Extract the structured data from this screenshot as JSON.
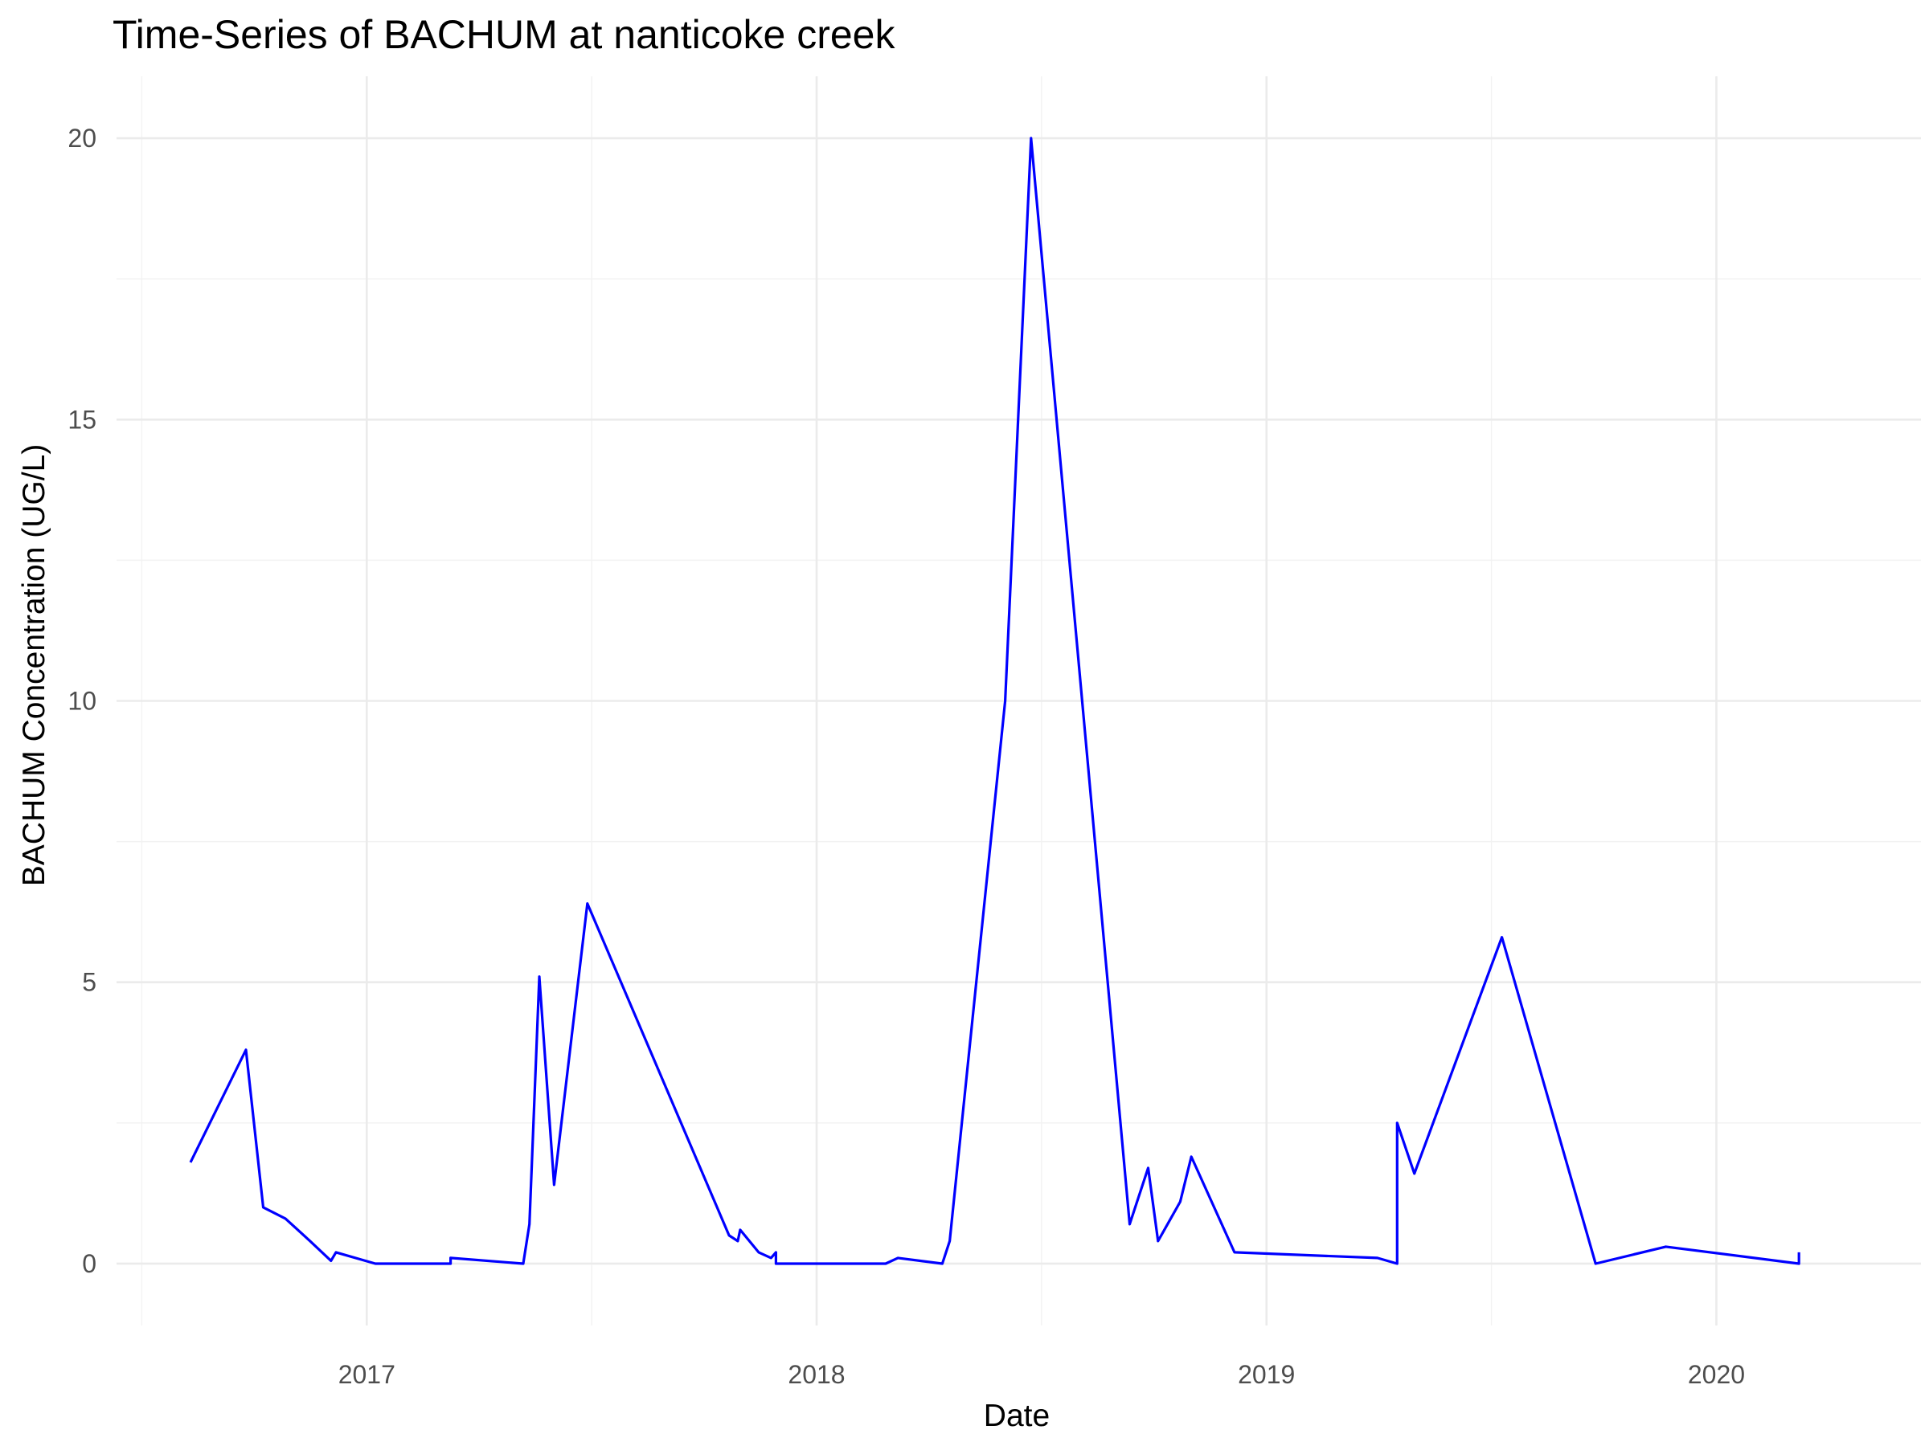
{
  "chart_data": {
    "type": "line",
    "title": "Time-Series of BACHUM at nanticoke creek",
    "xlabel": "Date",
    "ylabel": "BACHUM Concentration (UG/L)",
    "xlim": [
      "2016-06-12",
      "2020-06-15"
    ],
    "ylim": [
      -1.1,
      21.1
    ],
    "x_ticks": [
      {
        "date": "2017-01-01",
        "label": "2017"
      },
      {
        "date": "2018-01-01",
        "label": "2018"
      },
      {
        "date": "2019-01-01",
        "label": "2019"
      },
      {
        "date": "2020-01-01",
        "label": "2020"
      }
    ],
    "y_ticks": [
      0,
      5,
      10,
      15,
      20
    ],
    "grid": true,
    "line_color": "#0000ff",
    "series": [
      {
        "x": [
          "2016-08-11",
          "2016-09-25",
          "2016-10-09",
          "2016-10-27",
          "2016-11-16",
          "2016-12-03",
          "2016-12-07",
          "2017-01-08",
          "2017-03-10",
          "2017-03-10",
          "2017-05-08",
          "2017-05-13",
          "2017-05-21",
          "2017-06-02",
          "2017-06-29",
          "2017-10-22",
          "2017-10-29",
          "2017-10-31",
          "2017-11-15",
          "2017-11-25",
          "2017-11-29",
          "2017-11-29",
          "2018-02-26",
          "2018-03-08",
          "2018-04-13",
          "2018-04-19",
          "2018-06-03",
          "2018-06-24",
          "2018-09-12",
          "2018-09-27",
          "2018-10-05",
          "2018-10-23",
          "2018-11-01",
          "2018-12-06",
          "2019-04-01",
          "2019-04-17",
          "2019-04-17",
          "2019-05-01",
          "2019-07-11",
          "2019-09-25",
          "2019-11-21",
          "2020-03-08",
          "2020-03-08"
        ],
        "y": [
          1.8,
          3.8,
          1.0,
          0.8,
          0.4,
          0.05,
          0.2,
          0.0,
          0.0,
          0.1,
          0.0,
          0.7,
          5.1,
          1.4,
          6.4,
          0.5,
          0.4,
          0.6,
          0.2,
          0.1,
          0.2,
          0.0,
          0.0,
          0.1,
          0.0,
          0.4,
          10.0,
          20.0,
          0.7,
          1.7,
          0.4,
          1.1,
          1.9,
          0.2,
          0.1,
          0.0,
          2.5,
          1.6,
          5.8,
          0.0,
          0.3,
          0.0,
          0.2
        ]
      }
    ]
  }
}
